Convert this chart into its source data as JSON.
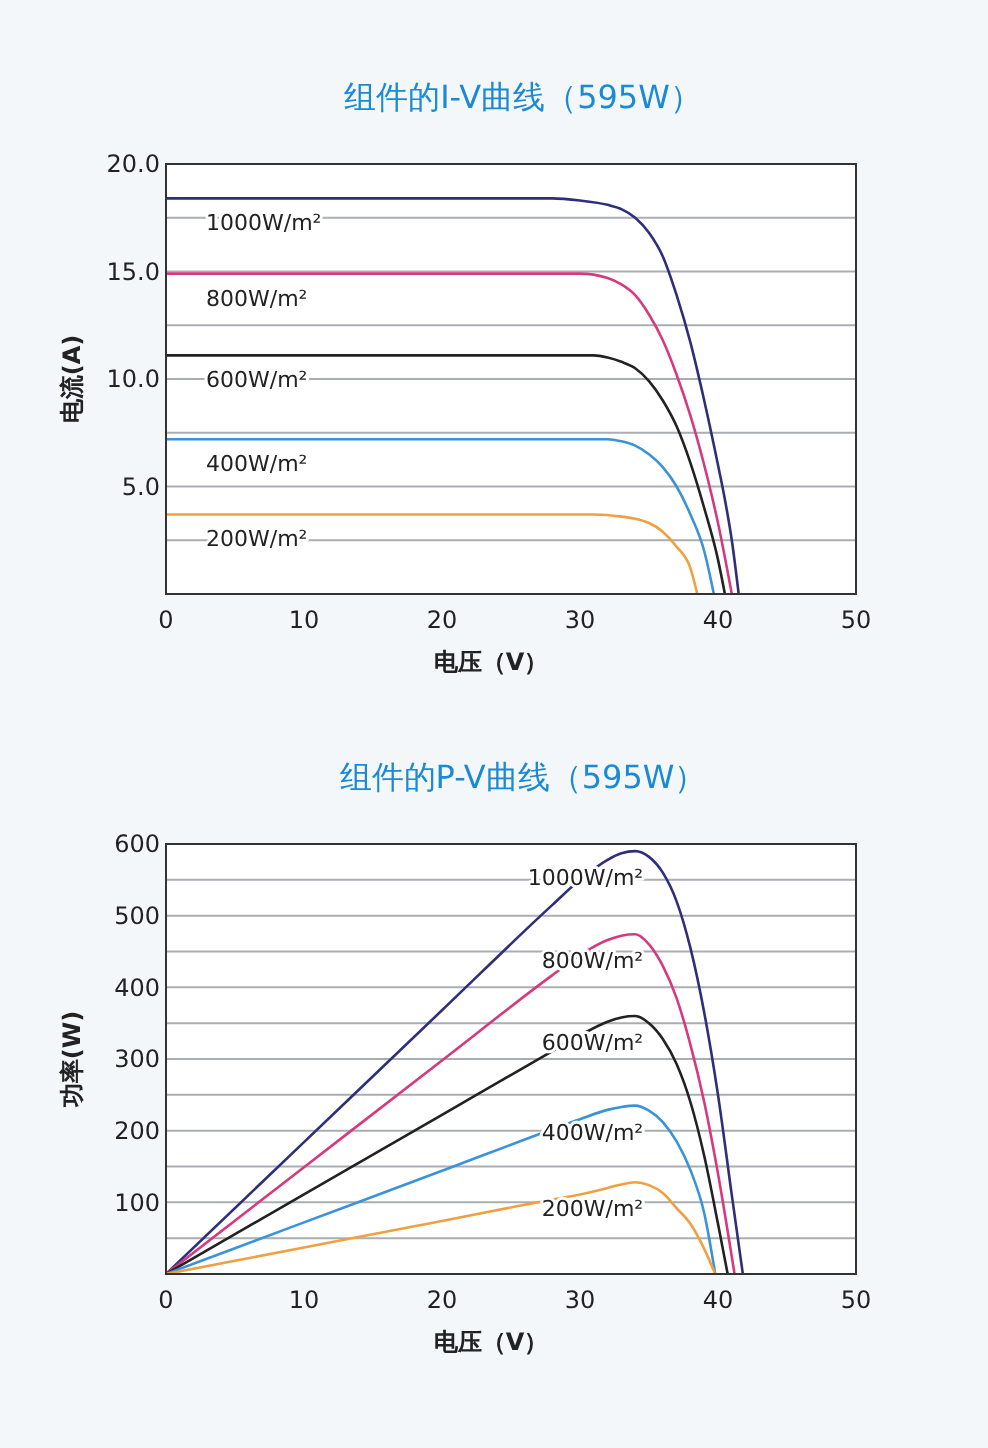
{
  "chart_data": [
    {
      "type": "line",
      "title": "组件的I-V曲线（595W）",
      "xlabel": "电压（V）",
      "ylabel": "电流(A)",
      "xlim": [
        0,
        50
      ],
      "xticks": [
        0,
        10,
        20,
        30,
        40,
        50
      ],
      "ylim": [
        0,
        20
      ],
      "yticks": [
        {
          "value": 2.5,
          "label": null
        },
        {
          "value": 5,
          "label": "5.0"
        },
        {
          "value": 7.5,
          "label": null
        },
        {
          "value": 10,
          "label": "10.0"
        },
        {
          "value": 12.5,
          "label": null
        },
        {
          "value": 15,
          "label": "15.0"
        },
        {
          "value": 17.5,
          "label": null
        },
        {
          "value": 20,
          "label": "20.0"
        }
      ],
      "grid": "y",
      "marker": "none",
      "line_style": "solid",
      "series": [
        {
          "name": "1000W/m²",
          "color": "#2e2e7a",
          "x": [
            0,
            28,
            30,
            32,
            33,
            34,
            35,
            36,
            37,
            38,
            39,
            40,
            40.5,
            41,
            41.5
          ],
          "values": [
            18.4,
            18.4,
            18.3,
            18.1,
            17.9,
            17.5,
            16.8,
            15.7,
            13.9,
            11.7,
            9.0,
            6.0,
            4.4,
            2.5,
            0
          ]
        },
        {
          "name": "800W/m²",
          "color": "#d63a7e",
          "x": [
            0,
            30,
            32,
            33,
            34,
            35,
            36,
            37,
            38,
            39,
            40,
            41
          ],
          "values": [
            14.9,
            14.9,
            14.7,
            14.4,
            13.9,
            13.0,
            11.8,
            10.2,
            8.3,
            6.0,
            3.3,
            0
          ]
        },
        {
          "name": "600W/m²",
          "color": "#222222",
          "x": [
            0,
            31,
            32,
            33,
            34,
            35,
            36,
            37,
            38,
            39,
            40,
            40.5
          ],
          "values": [
            11.1,
            11.1,
            11.0,
            10.8,
            10.5,
            9.9,
            9.0,
            7.8,
            6.1,
            4.0,
            1.6,
            0
          ]
        },
        {
          "name": "400W/m²",
          "color": "#3a93d6",
          "x": [
            0,
            32,
            33,
            34,
            35,
            36,
            37,
            38,
            39,
            39.7
          ],
          "values": [
            7.2,
            7.2,
            7.1,
            6.9,
            6.5,
            5.9,
            5.0,
            3.7,
            2.0,
            0
          ]
        },
        {
          "name": "200W/m²",
          "color": "#f0a040",
          "x": [
            0,
            31,
            33,
            34,
            35,
            36,
            37,
            38,
            38.5
          ],
          "values": [
            3.7,
            3.7,
            3.6,
            3.5,
            3.3,
            2.9,
            2.2,
            1.2,
            0
          ]
        }
      ]
    },
    {
      "type": "line",
      "title": "组件的P-V曲线（595W）",
      "xlabel": "电压（V）",
      "ylabel": "功率(W)",
      "xlim": [
        0,
        50
      ],
      "xticks": [
        0,
        10,
        20,
        30,
        40,
        50
      ],
      "ylim": [
        0,
        600
      ],
      "yticks": [
        {
          "value": 50,
          "label": null
        },
        100,
        {
          "value": 150,
          "label": null
        },
        200,
        {
          "value": 250,
          "label": null
        },
        300,
        {
          "value": 350,
          "label": null
        },
        400,
        {
          "value": 450,
          "label": null
        },
        500,
        {
          "value": 550,
          "label": null
        },
        600
      ],
      "grid": "y",
      "marker": "none",
      "line_style": "solid",
      "series": [
        {
          "name": "1000W/m²",
          "color": "#2e2e7a",
          "x": [
            0,
            10,
            20,
            28,
            30,
            32,
            33,
            34,
            35,
            36,
            37,
            38,
            39,
            40,
            41,
            41.8
          ],
          "values": [
            0,
            184,
            368,
            515,
            550,
            578,
            587,
            590,
            582,
            560,
            520,
            455,
            365,
            250,
            110,
            0
          ]
        },
        {
          "name": "800W/m²",
          "color": "#d63a7e",
          "x": [
            0,
            10,
            20,
            28,
            30,
            32,
            33,
            34,
            35,
            36,
            37,
            38,
            39,
            40,
            41.2
          ],
          "values": [
            0,
            149,
            298,
            417,
            445,
            466,
            472,
            474,
            460,
            430,
            385,
            320,
            240,
            140,
            0
          ]
        },
        {
          "name": "600W/m²",
          "color": "#222222",
          "x": [
            0,
            10,
            20,
            28,
            30,
            32,
            33,
            34,
            35,
            36,
            37,
            38,
            39,
            40,
            40.7
          ],
          "values": [
            0,
            111,
            222,
            311,
            333,
            352,
            358,
            360,
            350,
            328,
            293,
            240,
            165,
            70,
            0
          ]
        },
        {
          "name": "400W/m²",
          "color": "#3a93d6",
          "x": [
            0,
            10,
            20,
            28,
            30,
            32,
            33,
            34,
            35,
            36,
            37,
            38,
            39,
            39.8
          ],
          "values": [
            0,
            72,
            144,
            202,
            216,
            229,
            233,
            235,
            228,
            212,
            185,
            145,
            85,
            0
          ]
        },
        {
          "name": "200W/m²",
          "color": "#f0a040",
          "x": [
            0,
            10,
            20,
            28,
            30,
            32,
            33,
            34,
            35,
            36,
            37,
            38,
            39,
            39.8
          ],
          "values": [
            0,
            37,
            74,
            104,
            111,
            120,
            125,
            128,
            124,
            113,
            92,
            70,
            35,
            0
          ]
        }
      ]
    }
  ]
}
